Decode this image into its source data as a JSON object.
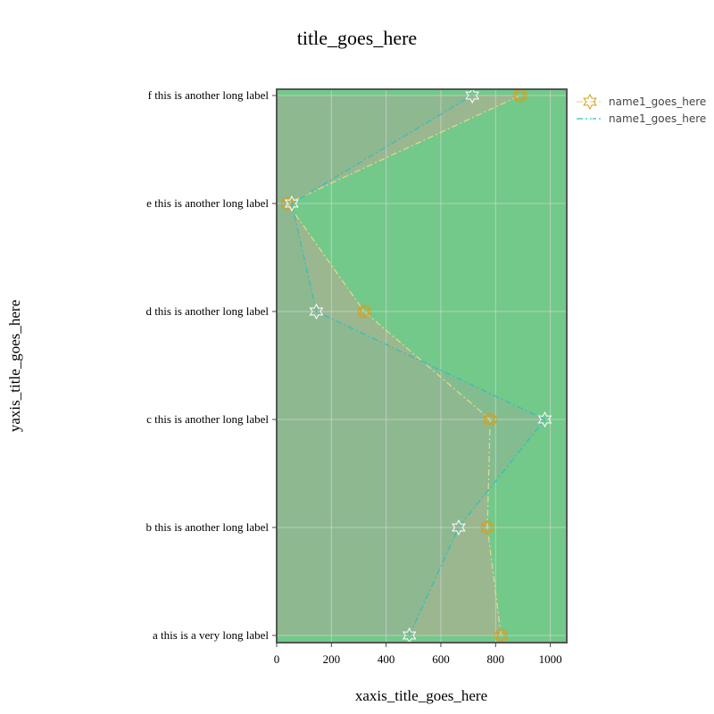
{
  "chart_data": {
    "type": "line",
    "orientation": "horizontal",
    "title": "title_goes_here",
    "xlabel": "xaxis_title_goes_here",
    "ylabel": "yaxis_title_goes_here",
    "xlim": [
      0,
      1060
    ],
    "xticks": [
      0,
      200,
      400,
      600,
      800,
      1000
    ],
    "categories": [
      "a this is a very long label",
      "b this is another long label",
      "c this is another long label",
      "d this is another long label",
      "e this is another long label",
      "f this is another long label"
    ],
    "grid": true,
    "fill": "toself",
    "legend_position": "top-right",
    "plot_background": "#72c98a",
    "series": [
      {
        "name": "name1_goes_here",
        "values": [
          820,
          770,
          780,
          320,
          40,
          890
        ],
        "line_style": "dashdot",
        "color": "#e8d890",
        "fill_color": "#a8b090",
        "marker": "circle+star",
        "marker_color": "#d4a020"
      },
      {
        "name": "name1_goes_here",
        "values": [
          485,
          665,
          980,
          145,
          55,
          715
        ],
        "line_style": "dashdot",
        "color": "#2bc0c0",
        "fill_color": "#8ab890",
        "marker": "star",
        "marker_color": "#ffffff"
      }
    ]
  }
}
